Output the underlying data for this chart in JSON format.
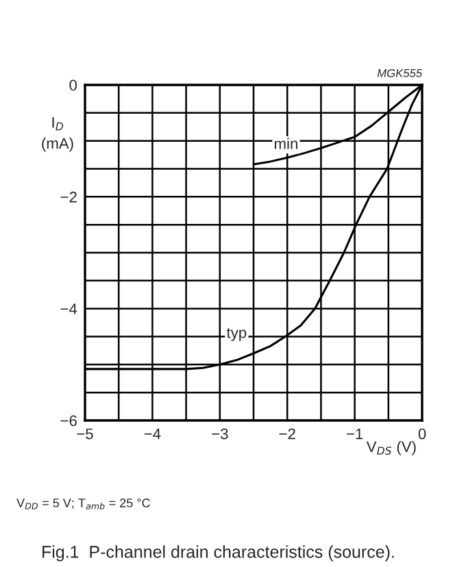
{
  "chart_data": {
    "type": "line",
    "title": "Fig.1  P-channel drain characteristics (source).",
    "xlabel": "V$_{DS}$ (V)",
    "ylabel": "I$_{D}$\n(mA)",
    "annotations": [
      "MGK555",
      "V$_{DD}$ = 5 V; T$_{amb}$ = 25 °C"
    ],
    "series": [
      {
        "name": "min",
        "color": "#000000",
        "x": [
          -2.5,
          -2.25,
          -2,
          -1.75,
          -1.5,
          -1.25,
          -1,
          -0.75,
          -0.5,
          -0.25,
          0
        ],
        "values": [
          -1.42,
          -1.37,
          -1.3,
          -1.22,
          -1.13,
          -1.03,
          -0.93,
          -0.73,
          -0.48,
          -0.23,
          0
        ]
      },
      {
        "name": "typ",
        "color": "#000000",
        "x": [
          -5,
          -4,
          -3.5,
          -3.25,
          -3,
          -2.75,
          -2.5,
          -2.25,
          -2.03,
          -1.8,
          -1.59,
          -1.37,
          -1.16,
          -0.98,
          -0.78,
          -0.52,
          -0.3,
          -0.15,
          0
        ],
        "values": [
          -5.08,
          -5.08,
          -5.08,
          -5.06,
          -5.0,
          -4.92,
          -4.8,
          -4.67,
          -4.5,
          -4.3,
          -4.0,
          -3.5,
          -3.0,
          -2.5,
          -2.0,
          -1.5,
          -0.8,
          -0.35,
          0
        ]
      }
    ],
    "xlim": [
      -5,
      0
    ],
    "ylim": [
      -6,
      0
    ],
    "xticks": [
      -5,
      {
        "value": -4.5,
        "label": null
      },
      -4,
      {
        "value": -3.5,
        "label": null
      },
      -3,
      {
        "value": -2.5,
        "label": null
      },
      -2,
      {
        "value": -1.5,
        "label": null
      },
      -1,
      {
        "value": -0.5,
        "label": null
      },
      0
    ],
    "yticks": [
      -6,
      {
        "value": -5.5,
        "label": null
      },
      {
        "value": -5,
        "label": null
      },
      {
        "value": -4.5,
        "label": null
      },
      -4,
      {
        "value": -3.5,
        "label": null
      },
      {
        "value": -3,
        "label": null
      },
      {
        "value": -2.5,
        "label": null
      },
      -2,
      {
        "value": -1.5,
        "label": null
      },
      {
        "value": -1,
        "label": null
      },
      {
        "value": -0.5,
        "label": null
      },
      0
    ],
    "grid": true,
    "legend": false,
    "marker": "none",
    "line_style": "solid"
  }
}
